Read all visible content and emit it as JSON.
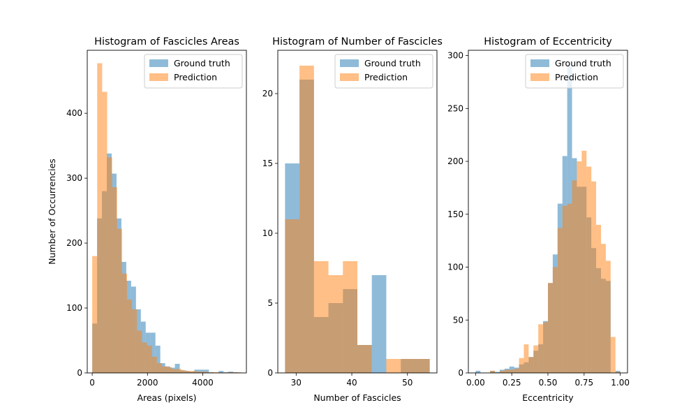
{
  "colors": {
    "gt": "#1f77b4",
    "pred": "#ff7f0e",
    "bar_alpha": 0.5
  },
  "chart_data": [
    {
      "type": "bar",
      "title": "Histogram of Fascicles Areas",
      "xlabel": "Areas (pixels)",
      "ylabel": "Number of Occurrencies",
      "xlim": [
        -180,
        5580
      ],
      "ylim": [
        0,
        497
      ],
      "xticks": [
        0,
        2000,
        4000
      ],
      "xtick_labels": [
        "0",
        "2000",
        "4000"
      ],
      "yticks": [
        0,
        100,
        200,
        300,
        400
      ],
      "ytick_labels": [
        "0",
        "100",
        "200",
        "300",
        "400"
      ],
      "legend": [
        "Ground truth",
        "Prediction"
      ],
      "legend_position": "top-right",
      "grid": false,
      "series": [
        {
          "name": "Ground truth",
          "bin_edges": [
            0,
            176,
            352,
            528,
            704,
            880,
            1056,
            1232,
            1408,
            1584,
            1760,
            1936,
            2112,
            2288,
            2464,
            2640,
            2816,
            2992,
            3168,
            3344,
            3520,
            3696,
            3872,
            4048,
            4224,
            4400,
            4576,
            4752,
            4928,
            5104,
            5280
          ],
          "counts": [
            76,
            238,
            280,
            338,
            307,
            238,
            171,
            142,
            133,
            98,
            79,
            62,
            62,
            42,
            15,
            10,
            8,
            14,
            4,
            3,
            2,
            5,
            5,
            5,
            1,
            0,
            3,
            1,
            2,
            1
          ]
        },
        {
          "name": "Prediction",
          "bin_edges": [
            0,
            180,
            360,
            540,
            720,
            900,
            1080,
            1260,
            1440,
            1620,
            1800,
            1980,
            2160,
            2340,
            2520,
            2700,
            2880,
            3060,
            3240,
            3420,
            3600,
            3780,
            3960,
            4140,
            4320,
            4500,
            4680,
            4860,
            5040,
            5220,
            5400
          ],
          "counts": [
            180,
            477,
            433,
            332,
            286,
            222,
            153,
            113,
            98,
            65,
            47,
            42,
            25,
            15,
            10,
            9,
            6,
            6,
            4,
            3,
            3,
            2,
            2,
            1,
            1,
            1,
            0,
            1,
            1,
            1
          ]
        }
      ]
    },
    {
      "type": "bar",
      "title": "Histogram of Number of Fascicles",
      "xlabel": "Number of Fascicles",
      "ylabel": "",
      "xlim": [
        26.7,
        55.3
      ],
      "ylim": [
        0,
        23.1
      ],
      "xticks": [
        30,
        40,
        50
      ],
      "xtick_labels": [
        "30",
        "40",
        "50"
      ],
      "yticks": [
        0,
        5,
        10,
        15,
        20
      ],
      "ytick_labels": [
        "0",
        "5",
        "10",
        "15",
        "20"
      ],
      "legend": [
        "Ground truth",
        "Prediction"
      ],
      "legend_position": "top-right",
      "grid": false,
      "series": [
        {
          "name": "Ground truth",
          "bin_edges": [
            28,
            30.6,
            33.2,
            35.8,
            38.4,
            41,
            43.6,
            46.2,
            48.8,
            51.4,
            54
          ],
          "counts": [
            15,
            21,
            4,
            5,
            6,
            2,
            7,
            0,
            1,
            1
          ]
        },
        {
          "name": "Prediction",
          "bin_edges": [
            28,
            30.6,
            33.2,
            35.8,
            38.4,
            41,
            43.6,
            46.2,
            48.8,
            51.4,
            54
          ],
          "counts": [
            11,
            22,
            8,
            7,
            8,
            2,
            0,
            1,
            1,
            1
          ]
        }
      ]
    },
    {
      "type": "bar",
      "title": "Histogram of Eccentricity",
      "xlabel": "Eccentricity",
      "ylabel": "",
      "xlim": [
        -0.05,
        1.05
      ],
      "ylim": [
        0,
        305
      ],
      "xticks": [
        0.0,
        0.25,
        0.5,
        0.75,
        1.0
      ],
      "xtick_labels": [
        "0.00",
        "0.25",
        "0.50",
        "0.75",
        "1.00"
      ],
      "yticks": [
        0,
        50,
        100,
        150,
        200,
        250,
        300
      ],
      "ytick_labels": [
        "0",
        "50",
        "100",
        "150",
        "200",
        "250",
        "300"
      ],
      "legend": [
        "Ground truth",
        "Prediction"
      ],
      "legend_position": "top-right",
      "grid": false,
      "series": [
        {
          "name": "Ground truth",
          "bin_edges": [
            0.0,
            0.0333,
            0.0667,
            0.1,
            0.1333,
            0.1667,
            0.2,
            0.2333,
            0.2667,
            0.3,
            0.3333,
            0.3667,
            0.4,
            0.4333,
            0.4667,
            0.5,
            0.5333,
            0.5667,
            0.6,
            0.6333,
            0.6667,
            0.7,
            0.7333,
            0.7667,
            0.8,
            0.8333,
            0.8667,
            0.9,
            0.9333,
            0.9667,
            1.0
          ],
          "counts": [
            2,
            0,
            0,
            2,
            1,
            3,
            4,
            6,
            5,
            8,
            10,
            15,
            21,
            27,
            49,
            85,
            112,
            160,
            205,
            290,
            203,
            176,
            176,
            147,
            118,
            99,
            89,
            87,
            0,
            2
          ]
        },
        {
          "name": "Prediction",
          "bin_edges": [
            0.0,
            0.0333,
            0.0667,
            0.1,
            0.1333,
            0.1667,
            0.2,
            0.2333,
            0.2667,
            0.3,
            0.3333,
            0.3667,
            0.4,
            0.4333,
            0.4667,
            0.5,
            0.5333,
            0.5667,
            0.6,
            0.6333,
            0.6667,
            0.7,
            0.7333,
            0.7667,
            0.8,
            0.8333,
            0.8667,
            0.9,
            0.9333,
            0.9667,
            1.0
          ],
          "counts": [
            0,
            0,
            0,
            2,
            0,
            2,
            3,
            3,
            4,
            14,
            27,
            15,
            26,
            46,
            48,
            85,
            100,
            137,
            158,
            160,
            182,
            200,
            210,
            195,
            181,
            140,
            122,
            106,
            34,
            1
          ]
        }
      ]
    }
  ]
}
